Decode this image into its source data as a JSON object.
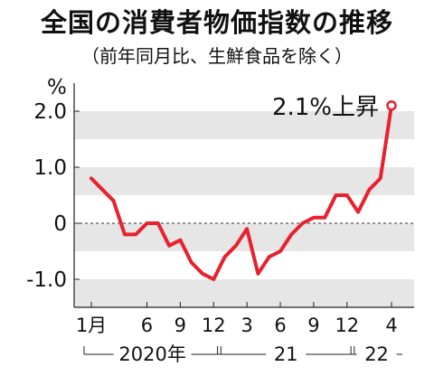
{
  "chart_data": {
    "type": "line",
    "title": "全国の消費者物価指数の推移",
    "subtitle": "（前年同月比、生鮮食品を除く）",
    "unit": "%",
    "ylim": [
      -1.5,
      2.5
    ],
    "yticks": [
      {
        "value": 2.0,
        "label": "2.0"
      },
      {
        "value": 1.0,
        "label": "1.0"
      },
      {
        "value": 0,
        "label": "0"
      },
      {
        "value": -1.0,
        "label": "-1.0"
      }
    ],
    "xticks": [
      {
        "index": 0,
        "label": "1月"
      },
      {
        "index": 5,
        "label": "6"
      },
      {
        "index": 8,
        "label": "9"
      },
      {
        "index": 11,
        "label": "12"
      },
      {
        "index": 14,
        "label": "3"
      },
      {
        "index": 17,
        "label": "6"
      },
      {
        "index": 20,
        "label": "9"
      },
      {
        "index": 23,
        "label": "12"
      },
      {
        "index": 27,
        "label": "4"
      }
    ],
    "years": [
      {
        "label": "2020年",
        "start": 0,
        "end": 11
      },
      {
        "label": "21",
        "start": 12,
        "end": 23
      },
      {
        "label": "22",
        "start": 24,
        "end": 27
      }
    ],
    "x": [
      "2020-01",
      "2020-02",
      "2020-03",
      "2020-04",
      "2020-05",
      "2020-06",
      "2020-07",
      "2020-08",
      "2020-09",
      "2020-10",
      "2020-11",
      "2020-12",
      "2021-01",
      "2021-02",
      "2021-03",
      "2021-04",
      "2021-05",
      "2021-06",
      "2021-07",
      "2021-08",
      "2021-09",
      "2021-10",
      "2021-11",
      "2021-12",
      "2022-01",
      "2022-02",
      "2022-03",
      "2022-04"
    ],
    "series": [
      {
        "values": [
          0.8,
          0.6,
          0.4,
          -0.2,
          -0.2,
          0.0,
          0.0,
          -0.4,
          -0.3,
          -0.7,
          -0.9,
          -1.0,
          -0.6,
          -0.4,
          -0.1,
          -0.9,
          -0.6,
          -0.5,
          -0.2,
          0.0,
          0.1,
          0.1,
          0.5,
          0.5,
          0.2,
          0.6,
          0.8,
          2.1
        ]
      }
    ],
    "annotation": {
      "text": "2.1%上昇",
      "index": 27
    },
    "line_color": "#e8212e",
    "band_color": "#e6e6e6",
    "grid_bands": true,
    "zero_line": "dashed"
  }
}
